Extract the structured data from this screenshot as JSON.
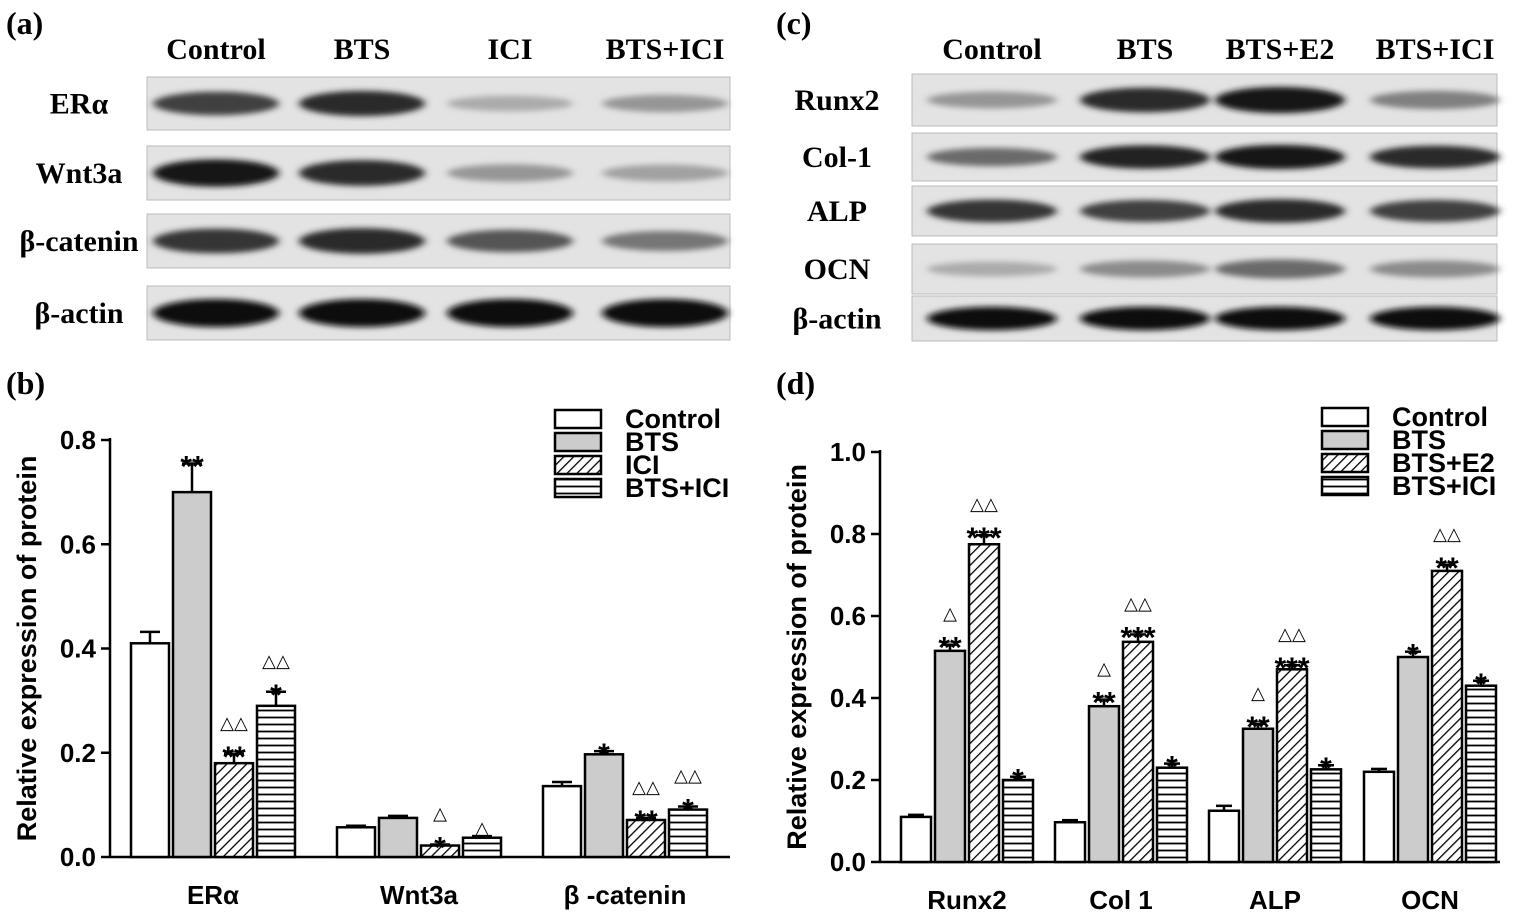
{
  "panels": {
    "a": "(a)",
    "b": "(b)",
    "c": "(c)",
    "d": "(d)"
  },
  "blot_a": {
    "columns": [
      "Control",
      "BTS",
      "ICI",
      "BTS+ICI"
    ],
    "rows": [
      {
        "label": "ERα",
        "intensity": [
          0.75,
          0.85,
          0.25,
          0.35
        ]
      },
      {
        "label": "Wnt3a",
        "intensity": [
          0.95,
          0.85,
          0.35,
          0.3
        ]
      },
      {
        "label": "β-catenin",
        "intensity": [
          0.8,
          0.85,
          0.65,
          0.5
        ]
      },
      {
        "label": "β-actin",
        "intensity": [
          1.0,
          1.0,
          1.0,
          1.0
        ]
      }
    ]
  },
  "blot_c": {
    "columns": [
      "Control",
      "BTS",
      "BTS+E2",
      "BTS+ICI"
    ],
    "rows": [
      {
        "label": "Runx2",
        "intensity": [
          0.35,
          0.85,
          0.95,
          0.45
        ]
      },
      {
        "label": "Col-1",
        "intensity": [
          0.55,
          0.9,
          0.95,
          0.85
        ]
      },
      {
        "label": "ALP",
        "intensity": [
          0.8,
          0.75,
          0.85,
          0.75
        ]
      },
      {
        "label": "OCN",
        "intensity": [
          0.25,
          0.4,
          0.55,
          0.4
        ]
      },
      {
        "label": "β-actin",
        "intensity": [
          1.0,
          1.0,
          1.0,
          1.0
        ]
      }
    ]
  },
  "chart_data": [
    {
      "type": "bar",
      "ylabel": "Relative expression of protein",
      "ylim": [
        0,
        0.8
      ],
      "yticks": [
        "0.0",
        "0.2",
        "0.4",
        "0.6",
        "0.8"
      ],
      "categories": [
        "ERα",
        "Wnt3a",
        "β -catenin"
      ],
      "legend_position": "top-right",
      "series": [
        {
          "name": "Control",
          "values": [
            0.41,
            0.057,
            0.136
          ],
          "errors": [
            0.022,
            0.003,
            0.008
          ],
          "annotations": [
            "",
            "",
            ""
          ]
        },
        {
          "name": "BTS",
          "values": [
            0.7,
            0.075,
            0.197
          ],
          "errors": [
            0.055,
            0.004,
            0.006
          ],
          "annotations": [
            "**",
            "",
            "*"
          ]
        },
        {
          "name": "ICI",
          "values": [
            0.18,
            0.022,
            0.071
          ],
          "errors": [
            0.018,
            0.002,
            0.004
          ],
          "annotations": [
            "△△\n**",
            "△\n*",
            "△△\n**"
          ]
        },
        {
          "name": "BTS+ICI",
          "values": [
            0.29,
            0.037,
            0.091
          ],
          "errors": [
            0.027,
            0.003,
            0.006
          ],
          "annotations": [
            "△△\n*",
            "△",
            "△△\n*"
          ]
        }
      ]
    },
    {
      "type": "bar",
      "ylabel": "Relative expression of protein",
      "ylim": [
        0,
        1.0
      ],
      "yticks": [
        "0.0",
        "0.2",
        "0.4",
        "0.6",
        "0.8",
        "1.0"
      ],
      "categories": [
        "Runx2",
        "Col 1",
        "ALP",
        "OCN"
      ],
      "legend_position": "top-right",
      "series": [
        {
          "name": "Control",
          "values": [
            0.11,
            0.097,
            0.125,
            0.22
          ],
          "errors": [
            0.005,
            0.005,
            0.012,
            0.007
          ],
          "annotations": [
            "",
            "",
            "",
            ""
          ]
        },
        {
          "name": "BTS",
          "values": [
            0.515,
            0.38,
            0.325,
            0.5
          ],
          "errors": [
            0.015,
            0.016,
            0.012,
            0.013
          ],
          "annotations": [
            "△\n**",
            "△\n**",
            "△\n**",
            "*"
          ]
        },
        {
          "name": "BTS+E2",
          "values": [
            0.775,
            0.537,
            0.47,
            0.71
          ],
          "errors": [
            0.022,
            0.018,
            0.01,
            0.015
          ],
          "annotations": [
            "△△\n***",
            "△△\n***",
            "△△\n***",
            "△△\n**"
          ]
        },
        {
          "name": "BTS+ICI",
          "values": [
            0.2,
            0.23,
            0.226,
            0.43
          ],
          "errors": [
            0.008,
            0.01,
            0.01,
            0.012
          ],
          "annotations": [
            "*",
            "*",
            "*",
            "*"
          ]
        }
      ]
    }
  ]
}
